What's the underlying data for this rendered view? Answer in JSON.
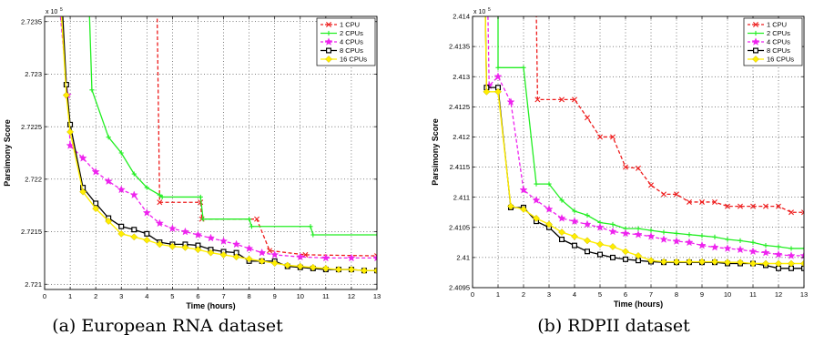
{
  "colors": {
    "1 CPU": "#ee1c1c",
    "2 CPUs": "#22ee22",
    "4 CPUs": "#ee22ee",
    "8 CPUs": "#000000",
    "16 CPUs": "#ffee00"
  },
  "chart_data": [
    {
      "type": "line",
      "caption": "(a) European RNA dataset",
      "xlabel": "Time (hours)",
      "ylabel": "Parsimony Score",
      "multiplier": "x 10",
      "multiplier_exp": "5",
      "xlim": [
        0,
        13
      ],
      "ylim": [
        2.72095,
        2.72355
      ],
      "xticks": [
        0,
        1,
        2,
        3,
        4,
        5,
        6,
        7,
        8,
        9,
        10,
        11,
        12,
        13
      ],
      "yticks": [
        2.721,
        2.7215,
        2.722,
        2.7225,
        2.723,
        2.7235
      ],
      "ytick_labels": [
        "2.721",
        "2.7215",
        "2.722",
        "2.7225",
        "2.723",
        "2.7235"
      ],
      "grid": true,
      "legend_position": "top-right",
      "series": [
        {
          "name": "1 CPU",
          "dash": "4,2.5",
          "marker": "x",
          "points": [
            [
              4.0,
              2.7236
            ],
            [
              4.4,
              2.7236
            ],
            [
              4.5,
              2.72178
            ],
            [
              6.1,
              2.72178
            ],
            [
              6.15,
              2.72162
            ],
            [
              8.3,
              2.72162
            ],
            [
              8.8,
              2.72132
            ],
            [
              10.2,
              2.72128
            ],
            [
              13,
              2.72127
            ]
          ]
        },
        {
          "name": "2 CPUs",
          "dash": "",
          "marker": "plus",
          "points": [
            [
              1.75,
              2.7236
            ],
            [
              1.85,
              2.72285
            ],
            [
              2.5,
              2.7224
            ],
            [
              3.0,
              2.72225
            ],
            [
              3.5,
              2.72205
            ],
            [
              4.0,
              2.72192
            ],
            [
              4.5,
              2.72185
            ],
            [
              4.6,
              2.72183
            ],
            [
              6.1,
              2.72183
            ],
            [
              6.2,
              2.72162
            ],
            [
              8.0,
              2.72162
            ],
            [
              8.1,
              2.72155
            ],
            [
              10.4,
              2.72155
            ],
            [
              10.5,
              2.72147
            ],
            [
              13,
              2.72147
            ]
          ]
        },
        {
          "name": "4 CPUs",
          "dash": "4,2.5",
          "marker": "star",
          "points": [
            [
              0.6,
              2.7236
            ],
            [
              0.9,
              2.7228
            ],
            [
              1.0,
              2.72232
            ],
            [
              1.5,
              2.7222
            ],
            [
              2.0,
              2.72207
            ],
            [
              2.5,
              2.72198
            ],
            [
              3.0,
              2.7219
            ],
            [
              3.5,
              2.72185
            ],
            [
              4.0,
              2.72168
            ],
            [
              4.5,
              2.72158
            ],
            [
              5.0,
              2.72153
            ],
            [
              5.5,
              2.7215
            ],
            [
              6.0,
              2.72147
            ],
            [
              6.5,
              2.72144
            ],
            [
              7.0,
              2.72141
            ],
            [
              7.5,
              2.72138
            ],
            [
              8.0,
              2.72134
            ],
            [
              8.5,
              2.7213
            ],
            [
              9.0,
              2.72128
            ],
            [
              10.0,
              2.72126
            ],
            [
              11.0,
              2.72125
            ],
            [
              12.0,
              2.72125
            ],
            [
              13,
              2.72125
            ]
          ]
        },
        {
          "name": "8 CPUs",
          "dash": "",
          "marker": "square",
          "points": [
            [
              0.7,
              2.7236
            ],
            [
              0.85,
              2.7229
            ],
            [
              1.0,
              2.72252
            ],
            [
              1.5,
              2.72192
            ],
            [
              2.0,
              2.72177
            ],
            [
              2.5,
              2.72163
            ],
            [
              3.0,
              2.72155
            ],
            [
              3.5,
              2.72152
            ],
            [
              4.0,
              2.72148
            ],
            [
              4.5,
              2.7214
            ],
            [
              5.0,
              2.72138
            ],
            [
              5.5,
              2.72138
            ],
            [
              6.0,
              2.72137
            ],
            [
              6.5,
              2.72133
            ],
            [
              7.0,
              2.72131
            ],
            [
              7.5,
              2.7213
            ],
            [
              8.0,
              2.72122
            ],
            [
              8.5,
              2.72122
            ],
            [
              9.0,
              2.72122
            ],
            [
              9.5,
              2.72117
            ],
            [
              10.0,
              2.72116
            ],
            [
              10.5,
              2.72115
            ],
            [
              11.0,
              2.72114
            ],
            [
              11.5,
              2.72114
            ],
            [
              12.0,
              2.72114
            ],
            [
              12.5,
              2.72113
            ],
            [
              13,
              2.72113
            ]
          ]
        },
        {
          "name": "16 CPUs",
          "dash": "",
          "marker": "diamond",
          "points": [
            [
              0.65,
              2.7236
            ],
            [
              0.85,
              2.7228
            ],
            [
              1.0,
              2.72245
            ],
            [
              1.5,
              2.72188
            ],
            [
              2.0,
              2.72172
            ],
            [
              2.5,
              2.7216
            ],
            [
              3.0,
              2.72148
            ],
            [
              3.5,
              2.72145
            ],
            [
              4.0,
              2.72142
            ],
            [
              4.5,
              2.72138
            ],
            [
              5.0,
              2.72136
            ],
            [
              5.5,
              2.72135
            ],
            [
              6.0,
              2.72133
            ],
            [
              6.5,
              2.7213
            ],
            [
              7.0,
              2.72128
            ],
            [
              7.5,
              2.72126
            ],
            [
              8.0,
              2.72124
            ],
            [
              8.5,
              2.72122
            ],
            [
              9.0,
              2.7212
            ],
            [
              9.5,
              2.72118
            ],
            [
              10.0,
              2.72117
            ],
            [
              10.5,
              2.72116
            ],
            [
              11.0,
              2.72115
            ],
            [
              11.5,
              2.72114
            ],
            [
              12.0,
              2.72114
            ],
            [
              12.5,
              2.72113
            ],
            [
              13,
              2.72113
            ]
          ]
        }
      ]
    },
    {
      "type": "line",
      "caption": "(b) RDPII dataset",
      "xlabel": "Time (hours)",
      "ylabel": "Parsimony Score",
      "multiplier": "x 10",
      "multiplier_exp": "5",
      "xlim": [
        0,
        13
      ],
      "ylim": [
        2.4095,
        2.414
      ],
      "xticks": [
        0,
        1,
        2,
        3,
        4,
        5,
        6,
        7,
        8,
        9,
        10,
        11,
        12,
        13
      ],
      "yticks": [
        2.4095,
        2.41,
        2.4105,
        2.411,
        2.4115,
        2.412,
        2.4125,
        2.413,
        2.4135,
        2.414
      ],
      "ytick_labels": [
        "2.4095",
        "2.41",
        "2.4105",
        "2.411",
        "2.4115",
        "2.412",
        "2.4125",
        "2.413",
        "2.4135",
        "2.414"
      ],
      "grid": true,
      "legend_position": "top-right",
      "series": [
        {
          "name": "1 CPU",
          "dash": "4,2.5",
          "marker": "x",
          "points": [
            [
              2.4,
              2.4141
            ],
            [
              2.5,
              2.4141
            ],
            [
              2.55,
              2.41262
            ],
            [
              3.5,
              2.41262
            ],
            [
              4.0,
              2.41262
            ],
            [
              4.5,
              2.41232
            ],
            [
              5.0,
              2.412
            ],
            [
              5.5,
              2.412
            ],
            [
              6.0,
              2.4115
            ],
            [
              6.5,
              2.41148
            ],
            [
              7.0,
              2.4112
            ],
            [
              7.5,
              2.41105
            ],
            [
              8.0,
              2.41105
            ],
            [
              8.5,
              2.41092
            ],
            [
              9.0,
              2.41092
            ],
            [
              9.5,
              2.41092
            ],
            [
              10.0,
              2.41085
            ],
            [
              10.5,
              2.41085
            ],
            [
              11.0,
              2.41085
            ],
            [
              11.5,
              2.41085
            ],
            [
              12.0,
              2.41085
            ],
            [
              12.5,
              2.41075
            ],
            [
              13,
              2.41075
            ]
          ]
        },
        {
          "name": "2 CPUs",
          "dash": "",
          "marker": "plus",
          "points": [
            [
              1.0,
              2.4141
            ],
            [
              1.0,
              2.41315
            ],
            [
              2.0,
              2.41315
            ],
            [
              2.5,
              2.41122
            ],
            [
              3.0,
              2.41122
            ],
            [
              3.5,
              2.41095
            ],
            [
              4.0,
              2.41077
            ],
            [
              4.5,
              2.4107
            ],
            [
              5.0,
              2.41058
            ],
            [
              5.5,
              2.41055
            ],
            [
              6.0,
              2.41048
            ],
            [
              6.5,
              2.41048
            ],
            [
              7.0,
              2.41045
            ],
            [
              7.5,
              2.41042
            ],
            [
              8.0,
              2.4104
            ],
            [
              8.5,
              2.41038
            ],
            [
              9.0,
              2.41036
            ],
            [
              9.5,
              2.41034
            ],
            [
              10.0,
              2.4103
            ],
            [
              10.5,
              2.41028
            ],
            [
              11.0,
              2.41025
            ],
            [
              11.5,
              2.4102
            ],
            [
              12.0,
              2.41018
            ],
            [
              12.5,
              2.41015
            ],
            [
              13,
              2.41015
            ]
          ]
        },
        {
          "name": "4 CPUs",
          "dash": "4,2.5",
          "marker": "star",
          "points": [
            [
              0.6,
              2.4141
            ],
            [
              0.65,
              2.41285
            ],
            [
              1.0,
              2.413
            ],
            [
              1.5,
              2.41258
            ],
            [
              2.0,
              2.41112
            ],
            [
              2.5,
              2.41095
            ],
            [
              3.0,
              2.4108
            ],
            [
              3.5,
              2.41065
            ],
            [
              4.0,
              2.4106
            ],
            [
              4.5,
              2.41055
            ],
            [
              5.0,
              2.4105
            ],
            [
              5.5,
              2.41043
            ],
            [
              6.0,
              2.4104
            ],
            [
              6.5,
              2.41038
            ],
            [
              7.0,
              2.41035
            ],
            [
              7.5,
              2.4103
            ],
            [
              8.0,
              2.41027
            ],
            [
              8.5,
              2.41025
            ],
            [
              9.0,
              2.4102
            ],
            [
              9.5,
              2.41017
            ],
            [
              10.0,
              2.41015
            ],
            [
              10.5,
              2.41013
            ],
            [
              11.0,
              2.4101
            ],
            [
              11.5,
              2.41008
            ],
            [
              12.0,
              2.41005
            ],
            [
              12.5,
              2.41003
            ],
            [
              13,
              2.41003
            ]
          ]
        },
        {
          "name": "8 CPUs",
          "dash": "",
          "marker": "square",
          "points": [
            [
              0.5,
              2.4141
            ],
            [
              0.55,
              2.41282
            ],
            [
              1.0,
              2.41282
            ],
            [
              1.5,
              2.41083
            ],
            [
              2.0,
              2.41083
            ],
            [
              2.5,
              2.4106
            ],
            [
              3.0,
              2.4105
            ],
            [
              3.5,
              2.4103
            ],
            [
              4.0,
              2.4102
            ],
            [
              4.5,
              2.4101
            ],
            [
              5.0,
              2.41005
            ],
            [
              5.5,
              2.41
            ],
            [
              6.0,
              2.40997
            ],
            [
              6.5,
              2.40995
            ],
            [
              7.0,
              2.40993
            ],
            [
              7.5,
              2.40992
            ],
            [
              8.0,
              2.40992
            ],
            [
              8.5,
              2.40992
            ],
            [
              9.0,
              2.40992
            ],
            [
              9.5,
              2.40992
            ],
            [
              10.0,
              2.4099
            ],
            [
              10.5,
              2.4099
            ],
            [
              11.0,
              2.4099
            ],
            [
              11.5,
              2.40987
            ],
            [
              12.0,
              2.40982
            ],
            [
              12.5,
              2.40982
            ],
            [
              13,
              2.40982
            ]
          ]
        },
        {
          "name": "16 CPUs",
          "dash": "",
          "marker": "diamond",
          "points": [
            [
              0.5,
              2.4141
            ],
            [
              0.55,
              2.41275
            ],
            [
              1.0,
              2.41275
            ],
            [
              1.5,
              2.41085
            ],
            [
              2.0,
              2.4108
            ],
            [
              2.5,
              2.41065
            ],
            [
              3.0,
              2.41055
            ],
            [
              3.5,
              2.41042
            ],
            [
              4.0,
              2.41035
            ],
            [
              4.5,
              2.41028
            ],
            [
              5.0,
              2.41022
            ],
            [
              5.5,
              2.41018
            ],
            [
              6.0,
              2.4101
            ],
            [
              6.5,
              2.41003
            ],
            [
              7.0,
              2.40995
            ],
            [
              7.5,
              2.40993
            ],
            [
              8.0,
              2.40993
            ],
            [
              8.5,
              2.40993
            ],
            [
              9.0,
              2.40993
            ],
            [
              9.5,
              2.40993
            ],
            [
              10.0,
              2.40992
            ],
            [
              10.5,
              2.40992
            ],
            [
              11.0,
              2.4099
            ],
            [
              11.5,
              2.4099
            ],
            [
              12.0,
              2.4099
            ],
            [
              12.5,
              2.4099
            ],
            [
              13,
              2.4099
            ]
          ]
        }
      ]
    }
  ]
}
